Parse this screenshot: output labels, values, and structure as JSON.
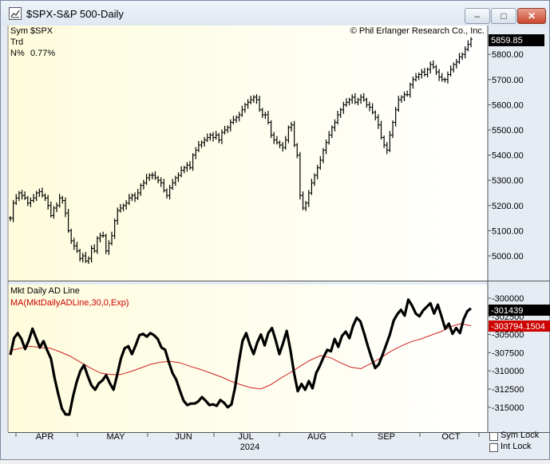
{
  "window": {
    "title": "$SPX-S&P 500-Daily",
    "icon": "chart-icon",
    "controls": {
      "minimize": "–",
      "maximize": "□",
      "close": "✕"
    }
  },
  "info_box": {
    "sym_label": "Sym",
    "sym_value": "$SPX",
    "trd_label": "Trd",
    "npct_label": "N%",
    "npct_value": "0.77%"
  },
  "copyright": "© Phil Erlanger Research Co., Inc.",
  "colors": {
    "plot_bg_left": "#fefcdc",
    "plot_bg_right": "#ffffff",
    "ma_line": "#d02020",
    "price_tag_bg": "#000000",
    "ma_tag_bg": "#cc0000"
  },
  "price_panel": {
    "current_price": "5859.85",
    "ticks": [
      "5800.00",
      "5700.00",
      "5600.00",
      "5500.00",
      "5400.00",
      "5300.00",
      "5200.00",
      "5100.00",
      "5000.00"
    ]
  },
  "indicator_panel": {
    "title": "Mkt Daily AD Line",
    "ma_label": "MA(MktDailyADLine,30,0,Exp)",
    "current_value": "-301439",
    "ma_value": "-303794.1504",
    "ticks": [
      "-300000",
      "-302500",
      "-305000",
      "-307500",
      "-310000",
      "-312500",
      "-315000"
    ]
  },
  "x_axis": {
    "months": [
      "APR",
      "MAY",
      "JUN",
      "JUL",
      "AUG",
      "SEP",
      "OCT"
    ],
    "year": "2024"
  },
  "sym_lock_label": "Sym Lock",
  "int_lock_label": "Int Lock",
  "chart_data": [
    {
      "type": "ohlc",
      "title": "$SPX-S&P 500-Daily",
      "ylim": [
        4940,
        5900
      ],
      "ticks": [
        5000,
        5100,
        5200,
        5300,
        5400,
        5500,
        5600,
        5700,
        5800
      ],
      "closes": [
        5150,
        5210,
        5230,
        5250,
        5240,
        5230,
        5210,
        5220,
        5230,
        5250,
        5255,
        5240,
        5230,
        5200,
        5160,
        5190,
        5200,
        5230,
        5220,
        5170,
        5100,
        5060,
        5040,
        5020,
        4990,
        5000,
        4980,
        4990,
        5030,
        5020,
        5070,
        5080,
        5080,
        5020,
        5050,
        5080,
        5140,
        5180,
        5190,
        5200,
        5210,
        5230,
        5240,
        5230,
        5250,
        5280,
        5290,
        5310,
        5320,
        5320,
        5310,
        5300,
        5290,
        5260,
        5240,
        5270,
        5290,
        5310,
        5320,
        5340,
        5350,
        5360,
        5350,
        5400,
        5420,
        5440,
        5450,
        5460,
        5470,
        5480,
        5470,
        5480,
        5460,
        5490,
        5500,
        5510,
        5530,
        5540,
        5550,
        5560,
        5580,
        5600,
        5610,
        5620,
        5630,
        5620,
        5580,
        5560,
        5560,
        5530,
        5480,
        5460,
        5450,
        5440,
        5430,
        5460,
        5510,
        5520,
        5440,
        5400,
        5240,
        5190,
        5210,
        5250,
        5290,
        5320,
        5350,
        5380,
        5420,
        5450,
        5480,
        5510,
        5530,
        5560,
        5580,
        5600,
        5610,
        5620,
        5630,
        5610,
        5620,
        5630,
        5620,
        5600,
        5590,
        5570,
        5550,
        5520,
        5470,
        5440,
        5420,
        5480,
        5530,
        5580,
        5620,
        5630,
        5640,
        5640,
        5680,
        5700,
        5710,
        5720,
        5730,
        5720,
        5740,
        5760,
        5750,
        5730,
        5710,
        5700,
        5700,
        5720,
        5740,
        5760,
        5770,
        5790,
        5800,
        5820,
        5840,
        5860
      ],
      "last": 5859.85
    },
    {
      "type": "line",
      "title": "Mkt Daily AD Line",
      "ylim": [
        -317000,
        -299000
      ],
      "ticks": [
        -300000,
        -302500,
        -305000,
        -307500,
        -310000,
        -312500,
        -315000
      ],
      "series": [
        {
          "name": "Mkt Daily AD Line",
          "values": [
            -307800,
            -305500,
            -304800,
            -305600,
            -307000,
            -305800,
            -304200,
            -305500,
            -306800,
            -305900,
            -307200,
            -308300,
            -311000,
            -313200,
            -315200,
            -316000,
            -316000,
            -313500,
            -311500,
            -310000,
            -309200,
            -310700,
            -312000,
            -312600,
            -311700,
            -311300,
            -310600,
            -311700,
            -312600,
            -310500,
            -308300,
            -306900,
            -306600,
            -307700,
            -306500,
            -305100,
            -304900,
            -305300,
            -304800,
            -305100,
            -305600,
            -306800,
            -307100,
            -308800,
            -310300,
            -311200,
            -312700,
            -314100,
            -314700,
            -314500,
            -314500,
            -314200,
            -313600,
            -314100,
            -314700,
            -314600,
            -314800,
            -314000,
            -314400,
            -315000,
            -314600,
            -312200,
            -308800,
            -305900,
            -304800,
            -306400,
            -307700,
            -306100,
            -305000,
            -306500,
            -304800,
            -304100,
            -305800,
            -307700,
            -306200,
            -304500,
            -307100,
            -310300,
            -312800,
            -311800,
            -312600,
            -311400,
            -312400,
            -310300,
            -309300,
            -308100,
            -307100,
            -307300,
            -305600,
            -306700,
            -305200,
            -304600,
            -305500,
            -303800,
            -302700,
            -303200,
            -304800,
            -306600,
            -308200,
            -309600,
            -309100,
            -307800,
            -306400,
            -305000,
            -303100,
            -302200,
            -301600,
            -302400,
            -300200,
            -301000,
            -302100,
            -302500,
            -301700,
            -301200,
            -300700,
            -302100,
            -300900,
            -302500,
            -304200,
            -303500,
            -304900,
            -304100,
            -304800,
            -302900,
            -301800,
            -301400
          ]
        },
        {
          "name": "MA(MktDailyADLine,30,0,Exp)",
          "values": [
            -307200,
            -306900,
            -306600,
            -306800,
            -306900,
            -307400,
            -308000,
            -308800,
            -309600,
            -310300,
            -310500,
            -310500,
            -310100,
            -309600,
            -309100,
            -308800,
            -308700,
            -308900,
            -309400,
            -309800,
            -310300,
            -310800,
            -311400,
            -311900,
            -312300,
            -312500,
            -311900,
            -311000,
            -310200,
            -309300,
            -308500,
            -307900,
            -308200,
            -308900,
            -309500,
            -309700,
            -309000,
            -308200,
            -307300,
            -306600,
            -306000,
            -305600,
            -305100,
            -304600,
            -303900,
            -303500,
            -303800
          ]
        }
      ],
      "last": -301439,
      "ma_last": -303794.1504
    }
  ]
}
